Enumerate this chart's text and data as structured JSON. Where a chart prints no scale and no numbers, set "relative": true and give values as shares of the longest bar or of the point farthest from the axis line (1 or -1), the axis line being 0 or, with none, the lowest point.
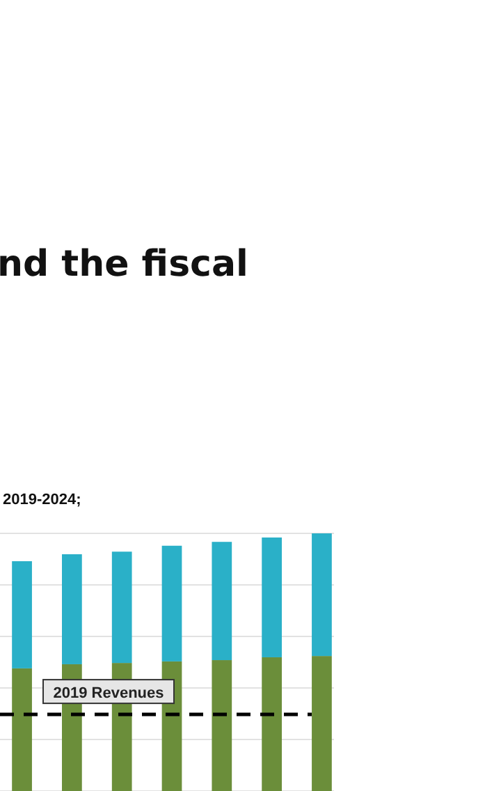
{
  "chart_data": {
    "type": "bar",
    "title": "nd the fiscal",
    "subtitle": "2019-2024;",
    "categories": [
      null,
      null,
      null,
      null,
      null,
      null,
      null
    ],
    "stacked": true,
    "relative": true,
    "grid": true,
    "series": [
      {
        "color": "#6b8e3a",
        "values": [
          0.476,
          0.492,
          0.497,
          0.503,
          0.508,
          0.519,
          0.524
        ]
      },
      {
        "color": "#2ab0c8",
        "values": [
          0.416,
          0.427,
          0.432,
          0.449,
          0.459,
          0.465,
          0.476
        ]
      }
    ],
    "ref_lines": [
      {
        "axis": "y",
        "value": 0.297,
        "label": "2019 Revenues",
        "color": "#000000",
        "line_style": "dashed"
      }
    ]
  }
}
